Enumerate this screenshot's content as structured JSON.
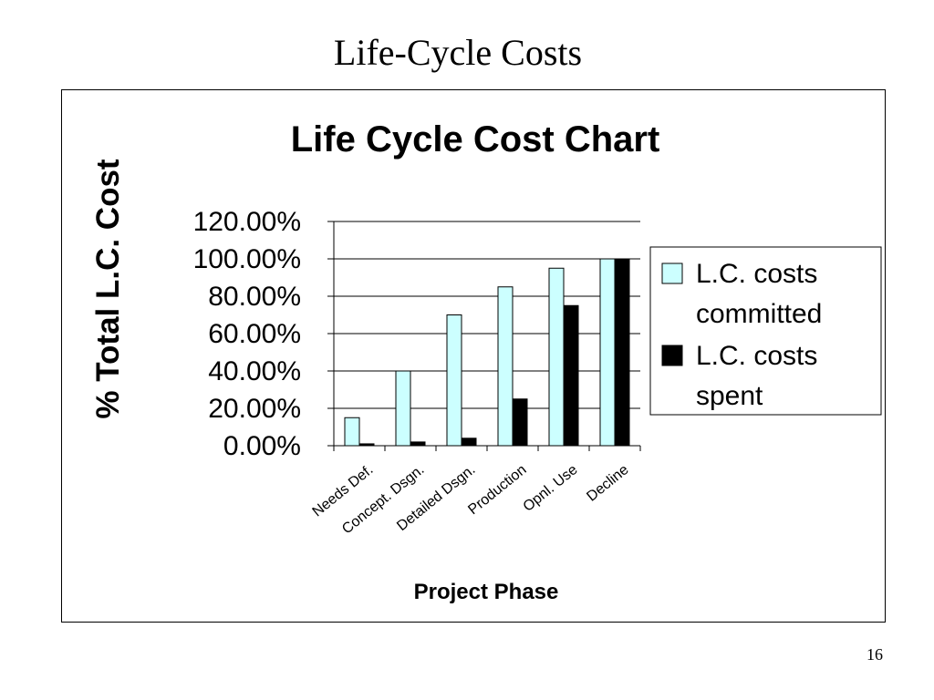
{
  "slide": {
    "title": "Life-Cycle Costs",
    "page_number": "16"
  },
  "chart_data": {
    "type": "bar",
    "title": "Life Cycle Cost Chart",
    "xlabel": "Project Phase",
    "ylabel": "% Total L.C. Cost",
    "categories": [
      "Needs Def.",
      "Concept. Dsgn.",
      "Detailed Dsgn.",
      "Production",
      "Opnl. Use",
      "Decline"
    ],
    "series": [
      {
        "name": "L.C. costs committed",
        "values": [
          15,
          40,
          70,
          85,
          95,
          100
        ],
        "color": "#ccffff"
      },
      {
        "name": "L.C. costs spent",
        "values": [
          1,
          2,
          4,
          25,
          75,
          100
        ],
        "color": "#000000"
      }
    ],
    "ylim": [
      0,
      120
    ],
    "yticks": [
      0,
      20,
      40,
      60,
      80,
      100,
      120
    ],
    "ytick_labels": [
      "0.00%",
      "20.00%",
      "40.00%",
      "60.00%",
      "80.00%",
      "100.00%",
      "120.00%"
    ],
    "grid": true,
    "legend_position": "right",
    "legend_labels": [
      [
        "L.C. costs",
        "committed"
      ],
      [
        "L.C. costs",
        "spent"
      ]
    ]
  }
}
